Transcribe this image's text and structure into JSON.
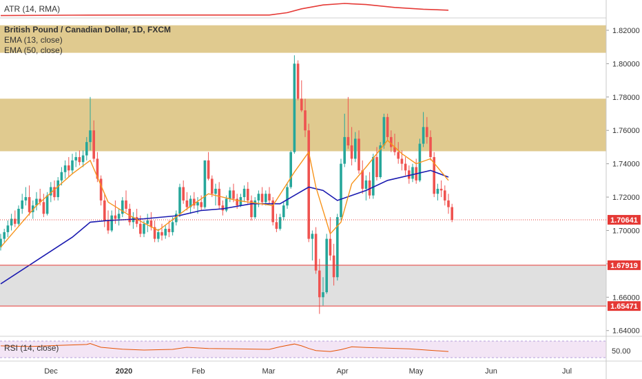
{
  "atr_panel": {
    "label": "ATR (14, RMA)"
  },
  "main_panel": {
    "title": "British Pound / Canadian Dollar, 1D, FXCM",
    "indicator_1": "EMA (13, close)",
    "indicator_2": "EMA (50, close)"
  },
  "rsi_panel": {
    "label": "RSI (14, close)",
    "tick": "50.00"
  },
  "price_axis": {
    "ticks": [
      "1.82000",
      "1.80000",
      "1.78000",
      "1.76000",
      "1.74000",
      "1.72000",
      "1.70000",
      "1.68000",
      "1.66000",
      "1.64000"
    ],
    "current_price": "1.70641",
    "level_upper": "1.67919",
    "level_lower": "1.65471"
  },
  "time_axis": {
    "ticks": [
      "Dec",
      "2020",
      "Feb",
      "Mar",
      "Apr",
      "May",
      "Jun",
      "Jul"
    ]
  },
  "colors": {
    "up": "#26a69a",
    "down": "#ef5350",
    "ema13": "#f7931a",
    "ema50": "#1a1ab0",
    "zone": "#dbc17b",
    "gray_zone": "#e0e0e0",
    "level": "#e53935",
    "atr": "#e53935",
    "rsi": "#e65100",
    "rsi_band": "#f3e5f5"
  },
  "chart_data": {
    "type": "candlestick",
    "symbol": "British Pound / Canadian Dollar",
    "timeframe": "1D",
    "ylim": [
      1.637,
      1.827
    ],
    "resistance_zones": [
      [
        1.8065,
        1.823
      ],
      [
        1.7475,
        1.779
      ]
    ],
    "support_zone": [
      1.6547,
      1.6792
    ],
    "candles": [
      [
        1.69,
        1.698,
        1.688,
        1.695
      ],
      [
        1.695,
        1.701,
        1.693,
        1.699
      ],
      [
        1.699,
        1.706,
        1.696,
        1.703
      ],
      [
        1.703,
        1.71,
        1.7,
        1.707
      ],
      [
        1.707,
        1.712,
        1.702,
        1.704
      ],
      [
        1.704,
        1.715,
        1.703,
        1.713
      ],
      [
        1.713,
        1.722,
        1.71,
        1.718
      ],
      [
        1.718,
        1.726,
        1.715,
        1.72
      ],
      [
        1.72,
        1.727,
        1.709,
        1.711
      ],
      [
        1.711,
        1.718,
        1.707,
        1.715
      ],
      [
        1.715,
        1.723,
        1.712,
        1.719
      ],
      [
        1.719,
        1.725,
        1.715,
        1.717
      ],
      [
        1.717,
        1.722,
        1.708,
        1.71
      ],
      [
        1.71,
        1.723,
        1.709,
        1.721
      ],
      [
        1.721,
        1.729,
        1.717,
        1.726
      ],
      [
        1.726,
        1.73,
        1.718,
        1.72
      ],
      [
        1.72,
        1.732,
        1.718,
        1.73
      ],
      [
        1.73,
        1.738,
        1.727,
        1.735
      ],
      [
        1.735,
        1.742,
        1.731,
        1.739
      ],
      [
        1.739,
        1.744,
        1.732,
        1.736
      ],
      [
        1.736,
        1.746,
        1.734,
        1.742
      ],
      [
        1.742,
        1.747,
        1.738,
        1.744
      ],
      [
        1.744,
        1.748,
        1.739,
        1.741
      ],
      [
        1.741,
        1.748,
        1.738,
        1.745
      ],
      [
        1.745,
        1.756,
        1.742,
        1.753
      ],
      [
        1.753,
        1.78,
        1.748,
        1.76
      ],
      [
        1.76,
        1.766,
        1.741,
        1.743
      ],
      [
        1.743,
        1.747,
        1.729,
        1.731
      ],
      [
        1.731,
        1.733,
        1.715,
        1.718
      ],
      [
        1.718,
        1.722,
        1.702,
        1.706
      ],
      [
        1.706,
        1.712,
        1.698,
        1.7
      ],
      [
        1.7,
        1.712,
        1.699,
        1.709
      ],
      [
        1.709,
        1.718,
        1.704,
        1.707
      ],
      [
        1.707,
        1.713,
        1.703,
        1.71
      ],
      [
        1.71,
        1.72,
        1.708,
        1.718
      ],
      [
        1.718,
        1.724,
        1.711,
        1.713
      ],
      [
        1.713,
        1.716,
        1.703,
        1.705
      ],
      [
        1.705,
        1.711,
        1.701,
        1.708
      ],
      [
        1.708,
        1.713,
        1.702,
        1.704
      ],
      [
        1.704,
        1.709,
        1.696,
        1.698
      ],
      [
        1.698,
        1.706,
        1.696,
        1.704
      ],
      [
        1.704,
        1.71,
        1.699,
        1.706
      ],
      [
        1.706,
        1.711,
        1.7,
        1.702
      ],
      [
        1.702,
        1.706,
        1.693,
        1.695
      ],
      [
        1.695,
        1.701,
        1.693,
        1.699
      ],
      [
        1.699,
        1.704,
        1.694,
        1.697
      ],
      [
        1.697,
        1.703,
        1.695,
        1.701
      ],
      [
        1.701,
        1.706,
        1.696,
        1.699
      ],
      [
        1.699,
        1.708,
        1.697,
        1.705
      ],
      [
        1.705,
        1.712,
        1.703,
        1.71
      ],
      [
        1.71,
        1.728,
        1.708,
        1.726
      ],
      [
        1.726,
        1.73,
        1.716,
        1.718
      ],
      [
        1.718,
        1.723,
        1.712,
        1.714
      ],
      [
        1.714,
        1.721,
        1.71,
        1.719
      ],
      [
        1.719,
        1.723,
        1.713,
        1.715
      ],
      [
        1.715,
        1.72,
        1.71,
        1.717
      ],
      [
        1.717,
        1.721,
        1.712,
        1.714
      ],
      [
        1.714,
        1.742,
        1.713,
        1.742
      ],
      [
        1.742,
        1.747,
        1.73,
        1.731
      ],
      [
        1.731,
        1.733,
        1.72,
        1.722
      ],
      [
        1.722,
        1.728,
        1.715,
        1.725
      ],
      [
        1.725,
        1.729,
        1.713,
        1.715
      ],
      [
        1.715,
        1.718,
        1.709,
        1.712
      ],
      [
        1.712,
        1.721,
        1.711,
        1.719
      ],
      [
        1.719,
        1.726,
        1.717,
        1.724
      ],
      [
        1.724,
        1.728,
        1.717,
        1.719
      ],
      [
        1.719,
        1.722,
        1.713,
        1.715
      ],
      [
        1.715,
        1.722,
        1.714,
        1.72
      ],
      [
        1.72,
        1.727,
        1.717,
        1.725
      ],
      [
        1.725,
        1.729,
        1.716,
        1.718
      ],
      [
        1.718,
        1.721,
        1.706,
        1.708
      ],
      [
        1.708,
        1.72,
        1.707,
        1.718
      ],
      [
        1.718,
        1.724,
        1.714,
        1.722
      ],
      [
        1.722,
        1.726,
        1.715,
        1.717
      ],
      [
        1.717,
        1.724,
        1.715,
        1.722
      ],
      [
        1.722,
        1.726,
        1.716,
        1.718
      ],
      [
        1.718,
        1.72,
        1.703,
        1.705
      ],
      [
        1.705,
        1.71,
        1.699,
        1.701
      ],
      [
        1.701,
        1.71,
        1.7,
        1.708
      ],
      [
        1.708,
        1.717,
        1.706,
        1.715
      ],
      [
        1.715,
        1.728,
        1.713,
        1.726
      ],
      [
        1.726,
        1.748,
        1.725,
        1.747
      ],
      [
        1.747,
        1.805,
        1.746,
        1.8
      ],
      [
        1.8,
        1.802,
        1.778,
        1.779
      ],
      [
        1.779,
        1.79,
        1.771,
        1.772
      ],
      [
        1.772,
        1.779,
        1.756,
        1.76
      ],
      [
        1.76,
        1.764,
        1.693,
        1.695
      ],
      [
        1.695,
        1.7,
        1.682,
        1.698
      ],
      [
        1.698,
        1.702,
        1.674,
        1.676
      ],
      [
        1.676,
        1.683,
        1.65,
        1.66
      ],
      [
        1.66,
        1.672,
        1.655,
        1.663
      ],
      [
        1.663,
        1.698,
        1.662,
        1.695
      ],
      [
        1.695,
        1.708,
        1.682,
        1.685
      ],
      [
        1.685,
        1.692,
        1.667,
        1.672
      ],
      [
        1.672,
        1.71,
        1.67,
        1.708
      ],
      [
        1.708,
        1.743,
        1.706,
        1.74
      ],
      [
        1.74,
        1.77,
        1.738,
        1.756
      ],
      [
        1.756,
        1.78,
        1.749,
        1.751
      ],
      [
        1.751,
        1.762,
        1.739,
        1.743
      ],
      [
        1.743,
        1.759,
        1.741,
        1.755
      ],
      [
        1.755,
        1.76,
        1.734,
        1.736
      ],
      [
        1.736,
        1.742,
        1.722,
        1.725
      ],
      [
        1.725,
        1.733,
        1.718,
        1.73
      ],
      [
        1.73,
        1.735,
        1.719,
        1.721
      ],
      [
        1.721,
        1.746,
        1.719,
        1.744
      ],
      [
        1.744,
        1.75,
        1.73,
        1.732
      ],
      [
        1.732,
        1.753,
        1.731,
        1.751
      ],
      [
        1.751,
        1.77,
        1.749,
        1.768
      ],
      [
        1.768,
        1.77,
        1.754,
        1.756
      ],
      [
        1.756,
        1.76,
        1.747,
        1.75
      ],
      [
        1.75,
        1.758,
        1.745,
        1.747
      ],
      [
        1.747,
        1.753,
        1.74,
        1.743
      ],
      [
        1.743,
        1.748,
        1.736,
        1.74
      ],
      [
        1.74,
        1.744,
        1.733,
        1.736
      ],
      [
        1.736,
        1.739,
        1.728,
        1.731
      ],
      [
        1.731,
        1.74,
        1.729,
        1.738
      ],
      [
        1.738,
        1.743,
        1.728,
        1.73
      ],
      [
        1.73,
        1.755,
        1.729,
        1.752
      ],
      [
        1.752,
        1.771,
        1.75,
        1.762
      ],
      [
        1.762,
        1.768,
        1.752,
        1.756
      ],
      [
        1.756,
        1.76,
        1.742,
        1.744
      ],
      [
        1.744,
        1.747,
        1.72,
        1.722
      ],
      [
        1.722,
        1.728,
        1.718,
        1.725
      ],
      [
        1.725,
        1.73,
        1.72,
        1.724
      ],
      [
        1.724,
        1.727,
        1.715,
        1.718
      ],
      [
        1.718,
        1.722,
        1.71,
        1.714
      ],
      [
        1.714,
        1.716,
        1.705,
        1.7064
      ]
    ],
    "ema13": [
      [
        0,
        1.69
      ],
      [
        10,
        1.715
      ],
      [
        20,
        1.734
      ],
      [
        25,
        1.742
      ],
      [
        30,
        1.717
      ],
      [
        36,
        1.709
      ],
      [
        44,
        1.7
      ],
      [
        52,
        1.713
      ],
      [
        58,
        1.722
      ],
      [
        66,
        1.718
      ],
      [
        76,
        1.715
      ],
      [
        82,
        1.735
      ],
      [
        86,
        1.747
      ],
      [
        88,
        1.726
      ],
      [
        92,
        1.698
      ],
      [
        95,
        1.705
      ],
      [
        98,
        1.728
      ],
      [
        102,
        1.738
      ],
      [
        108,
        1.754
      ],
      [
        112,
        1.746
      ],
      [
        116,
        1.74
      ],
      [
        120,
        1.743
      ],
      [
        125,
        1.73
      ]
    ],
    "ema50": [
      [
        0,
        1.668
      ],
      [
        10,
        1.682
      ],
      [
        20,
        1.696
      ],
      [
        25,
        1.705
      ],
      [
        30,
        1.706
      ],
      [
        40,
        1.707
      ],
      [
        50,
        1.709
      ],
      [
        56,
        1.712
      ],
      [
        62,
        1.713
      ],
      [
        70,
        1.716
      ],
      [
        78,
        1.716
      ],
      [
        82,
        1.721
      ],
      [
        86,
        1.726
      ],
      [
        90,
        1.724
      ],
      [
        94,
        1.718
      ],
      [
        98,
        1.721
      ],
      [
        102,
        1.724
      ],
      [
        108,
        1.73
      ],
      [
        114,
        1.733
      ],
      [
        120,
        1.736
      ],
      [
        125,
        1.732
      ]
    ],
    "atr": [
      [
        0,
        3.0
      ],
      [
        20,
        3.2
      ],
      [
        40,
        3.3
      ],
      [
        60,
        3.3
      ],
      [
        75,
        3.3
      ],
      [
        80,
        4.5
      ],
      [
        84,
        6.5
      ],
      [
        90,
        8.5
      ],
      [
        96,
        9.3
      ],
      [
        102,
        8.7
      ],
      [
        110,
        7.2
      ],
      [
        118,
        6.3
      ],
      [
        125,
        5.8
      ]
    ],
    "rsi": [
      [
        0,
        62
      ],
      [
        8,
        59
      ],
      [
        16,
        64
      ],
      [
        24,
        68
      ],
      [
        25,
        72
      ],
      [
        28,
        56
      ],
      [
        34,
        48
      ],
      [
        40,
        44
      ],
      [
        48,
        47
      ],
      [
        52,
        56
      ],
      [
        58,
        51
      ],
      [
        66,
        49
      ],
      [
        75,
        47
      ],
      [
        78,
        58
      ],
      [
        82,
        70
      ],
      [
        84,
        62
      ],
      [
        86,
        51
      ],
      [
        88,
        42
      ],
      [
        92,
        38
      ],
      [
        95,
        46
      ],
      [
        98,
        58
      ],
      [
        102,
        55
      ],
      [
        108,
        52
      ],
      [
        114,
        49
      ],
      [
        120,
        43
      ],
      [
        125,
        38
      ]
    ]
  }
}
